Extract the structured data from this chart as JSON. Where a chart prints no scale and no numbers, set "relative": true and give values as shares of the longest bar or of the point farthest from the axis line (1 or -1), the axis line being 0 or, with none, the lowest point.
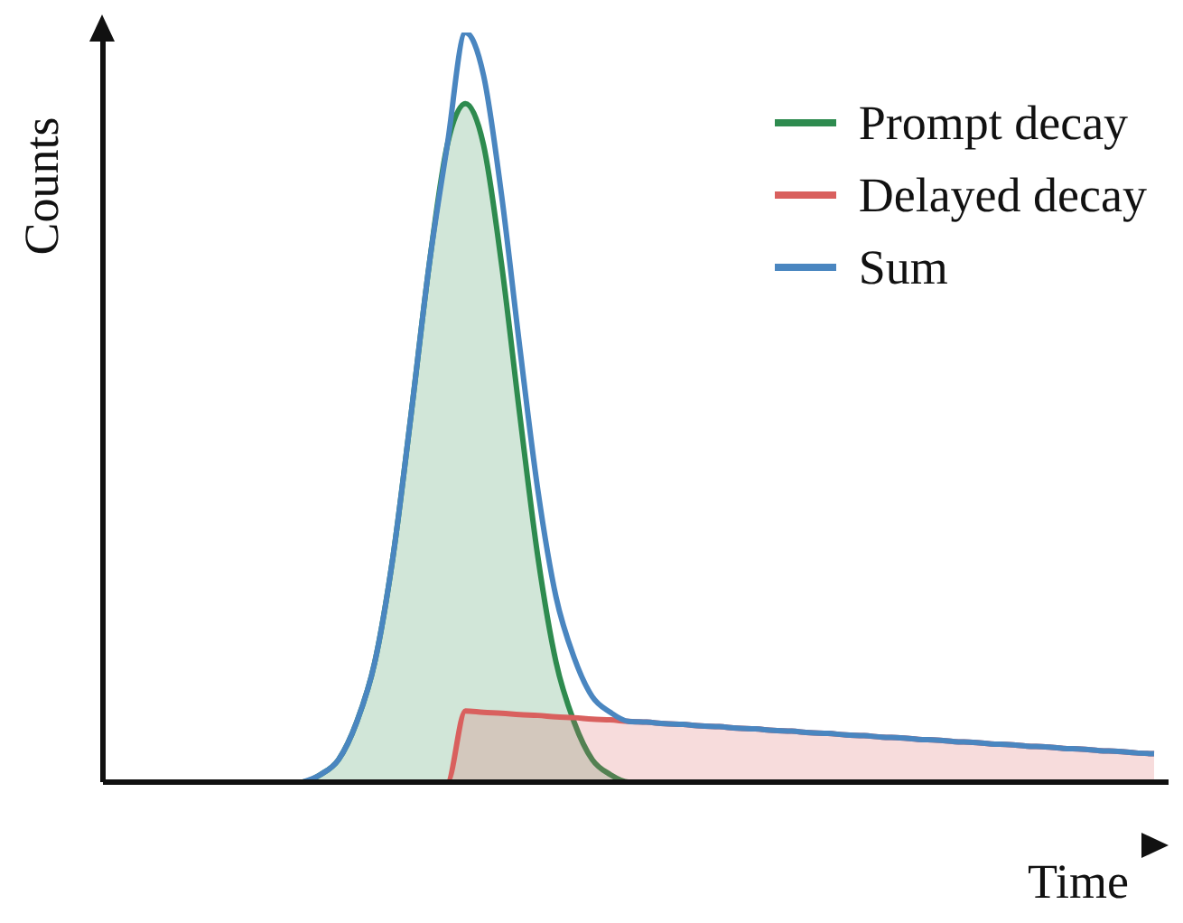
{
  "chart_data": {
    "type": "area",
    "relative": true,
    "xlabel": "Time",
    "ylabel": "Counts",
    "legend": "top right",
    "categories": [
      null,
      null,
      null,
      null,
      null,
      null,
      null,
      null,
      null,
      null,
      null,
      null,
      null,
      null,
      null,
      null,
      null,
      null,
      null,
      null,
      null,
      null,
      null,
      null,
      null,
      null,
      null,
      null,
      null,
      null,
      null,
      null,
      null,
      null,
      null,
      null,
      null,
      null,
      null,
      null,
      null,
      null,
      null,
      null,
      null,
      null,
      null,
      null,
      null,
      null,
      null,
      null,
      null,
      null,
      null,
      null,
      null,
      null,
      null
    ],
    "series": [
      {
        "name": "Prompt decay",
        "color": "#2e8b4f",
        "values": [
          0,
          0,
          0,
          0,
          0,
          0,
          0,
          0,
          0,
          0,
          0,
          0,
          0.01,
          0.03,
          0.08,
          0.16,
          0.3,
          0.49,
          0.69,
          0.85,
          0.905,
          0.85,
          0.69,
          0.49,
          0.3,
          0.16,
          0.08,
          0.03,
          0.01,
          0,
          0,
          0,
          0,
          0,
          0,
          0,
          0,
          0,
          0,
          0,
          0,
          0,
          0,
          0,
          0,
          0,
          0,
          0,
          0,
          0,
          0,
          0,
          0,
          0,
          0,
          0,
          0,
          0,
          0
        ]
      },
      {
        "name": "Delayed decay",
        "color": "#d9605e",
        "values": [
          0,
          0,
          0,
          0,
          0,
          0,
          0,
          0,
          0,
          0,
          0,
          0,
          0,
          0,
          0,
          0,
          0,
          0,
          0,
          0,
          0.095,
          0.093,
          0.092,
          0.09,
          0.089,
          0.087,
          0.086,
          0.084,
          0.083,
          0.081,
          0.08,
          0.078,
          0.077,
          0.075,
          0.074,
          0.072,
          0.071,
          0.069,
          0.068,
          0.066,
          0.065,
          0.063,
          0.062,
          0.06,
          0.059,
          0.057,
          0.056,
          0.054,
          0.053,
          0.051,
          0.05,
          0.048,
          0.047,
          0.045,
          0.044,
          0.042,
          0.041,
          0.039,
          0.038
        ]
      },
      {
        "name": "Sum",
        "type": "line",
        "color": "#4a86c0",
        "values": [
          null,
          null,
          null,
          null,
          null,
          null,
          null,
          null,
          null,
          null,
          null,
          0,
          0.01,
          0.03,
          0.08,
          0.16,
          0.3,
          0.49,
          0.69,
          0.85,
          1,
          0.943,
          0.782,
          0.58,
          0.389,
          0.247,
          0.166,
          0.114,
          0.093,
          0.081,
          0.08,
          0.078,
          0.077,
          0.075,
          0.074,
          0.072,
          0.071,
          0.069,
          0.068,
          0.066,
          0.065,
          0.063,
          0.062,
          0.06,
          0.059,
          0.057,
          0.056,
          0.054,
          0.053,
          0.051,
          0.05,
          0.048,
          0.047,
          0.045,
          0.044,
          0.042,
          0.041,
          0.039,
          0.038
        ]
      }
    ]
  }
}
